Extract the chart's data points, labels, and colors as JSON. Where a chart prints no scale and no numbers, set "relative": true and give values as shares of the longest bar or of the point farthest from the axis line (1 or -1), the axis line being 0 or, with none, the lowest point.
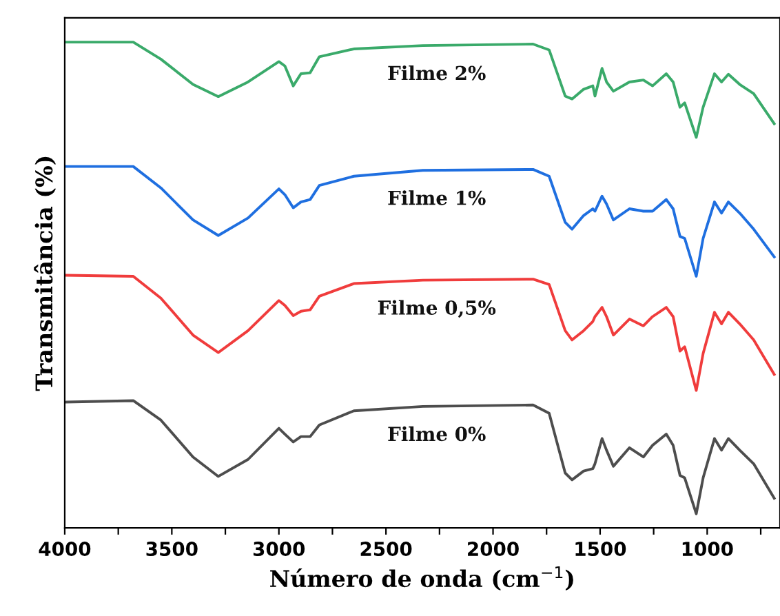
{
  "chart_data": {
    "type": "line",
    "relative": true,
    "xlabel": "Número de onda (cm$^{−1}$)",
    "ylabel": "Transmitância (%)",
    "xlim": [
      4000,
      660
    ],
    "xticks": [
      4000,
      {
        "value": 3750,
        "label": null
      },
      3500,
      {
        "value": 3250,
        "label": null
      },
      3000,
      {
        "value": 2750,
        "label": null
      },
      2500,
      {
        "value": 2250,
        "label": null
      },
      2000,
      {
        "value": 1750,
        "label": null
      },
      1500,
      {
        "value": 1250,
        "label": null
      },
      1000,
      {
        "value": 750,
        "label": null
      }
    ],
    "tick_labels": "x",
    "grid": false,
    "legend": false,
    "marker": "none",
    "line_style": "solid",
    "x": [
      3991,
      3680,
      3551,
      3401,
      3283,
      3144,
      3000,
      2972,
      2933,
      2897,
      2854,
      2811,
      2650,
      2328,
      1813,
      1738,
      1663,
      1631,
      1577,
      1534,
      1524,
      1491,
      1470,
      1438,
      1363,
      1298,
      1255,
      1191,
      1159,
      1127,
      1105,
      1051,
      1019,
      966,
      933,
      901,
      848,
      783,
      687
    ],
    "series": [
      {
        "name": "Filme 2%",
        "color": "#3aaa6a",
        "values": [
          1.0,
          1.0,
          0.965,
          0.913,
          0.888,
          0.918,
          0.96,
          0.951,
          0.91,
          0.935,
          0.937,
          0.97,
          0.986,
          0.993,
          0.996,
          0.984,
          0.889,
          0.883,
          0.903,
          0.91,
          0.889,
          0.946,
          0.918,
          0.899,
          0.918,
          0.922,
          0.91,
          0.935,
          0.918,
          0.866,
          0.875,
          0.804,
          0.866,
          0.935,
          0.918,
          0.934,
          0.913,
          0.894,
          0.832
        ]
      },
      {
        "name": "Filme 1%",
        "color": "#1f6fe0",
        "values": [
          0.744,
          0.744,
          0.7,
          0.634,
          0.602,
          0.638,
          0.698,
          0.686,
          0.659,
          0.671,
          0.676,
          0.705,
          0.724,
          0.736,
          0.738,
          0.724,
          0.629,
          0.615,
          0.643,
          0.657,
          0.652,
          0.683,
          0.667,
          0.634,
          0.657,
          0.652,
          0.652,
          0.676,
          0.657,
          0.6,
          0.596,
          0.518,
          0.596,
          0.671,
          0.648,
          0.671,
          0.648,
          0.615,
          0.558
        ]
      },
      {
        "name": "Filme 0,5%",
        "color": "#f03c3c",
        "values": [
          0.52,
          0.518,
          0.473,
          0.397,
          0.361,
          0.406,
          0.468,
          0.458,
          0.437,
          0.446,
          0.449,
          0.477,
          0.503,
          0.51,
          0.512,
          0.501,
          0.406,
          0.387,
          0.406,
          0.425,
          0.435,
          0.454,
          0.435,
          0.397,
          0.43,
          0.416,
          0.435,
          0.454,
          0.435,
          0.364,
          0.373,
          0.283,
          0.359,
          0.444,
          0.42,
          0.444,
          0.42,
          0.387,
          0.316
        ]
      },
      {
        "name": "Filme 0%",
        "color": "#4d4d4d",
        "values": [
          0.259,
          0.262,
          0.222,
          0.146,
          0.106,
          0.141,
          0.205,
          0.193,
          0.177,
          0.188,
          0.188,
          0.212,
          0.241,
          0.25,
          0.253,
          0.236,
          0.113,
          0.099,
          0.117,
          0.122,
          0.132,
          0.184,
          0.16,
          0.127,
          0.165,
          0.146,
          0.17,
          0.193,
          0.17,
          0.108,
          0.103,
          0.029,
          0.103,
          0.184,
          0.16,
          0.184,
          0.16,
          0.132,
          0.061
        ]
      }
    ]
  }
}
